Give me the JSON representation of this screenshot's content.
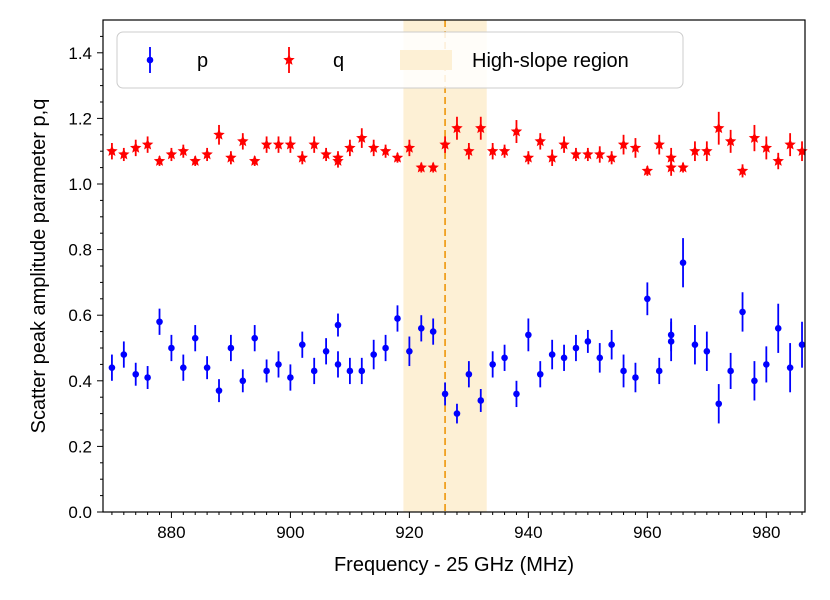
{
  "chart_data": {
    "type": "scatter",
    "xlabel": "Frequency - 25 GHz (MHz)",
    "ylabel": "Scatter peak amplitude parameter p,q",
    "xlim": [
      868.5,
      986.5
    ],
    "ylim": [
      0.0,
      1.5
    ],
    "xticks": [
      880,
      900,
      920,
      940,
      960,
      980
    ],
    "yticks": [
      0.0,
      0.2,
      0.4,
      0.6,
      0.8,
      1.0,
      1.2,
      1.4
    ],
    "legend_position": "top",
    "legend": [
      {
        "label": "p",
        "color": "#0000ff",
        "marker": "dot"
      },
      {
        "label": "q",
        "color": "#ff0000",
        "marker": "star"
      },
      {
        "label": "High-slope region",
        "color": "#fdf0d5",
        "marker": "band"
      }
    ],
    "highlight_region": {
      "label": "High-slope region",
      "x_start": 919,
      "x_end": 933,
      "color": "#fdf0d5"
    },
    "vertical_line": {
      "x": 926,
      "color": "#f0a020",
      "style": "dashed"
    },
    "series": [
      {
        "name": "p",
        "color": "#0000ff",
        "marker": "dot",
        "points": [
          [
            870,
            0.44,
            0.04
          ],
          [
            872,
            0.48,
            0.04
          ],
          [
            874,
            0.42,
            0.035
          ],
          [
            876,
            0.41,
            0.035
          ],
          [
            878,
            0.58,
            0.04
          ],
          [
            880,
            0.5,
            0.04
          ],
          [
            882,
            0.44,
            0.04
          ],
          [
            884,
            0.53,
            0.04
          ],
          [
            886,
            0.44,
            0.035
          ],
          [
            888,
            0.37,
            0.035
          ],
          [
            890,
            0.5,
            0.04
          ],
          [
            892,
            0.4,
            0.035
          ],
          [
            894,
            0.53,
            0.04
          ],
          [
            896,
            0.43,
            0.035
          ],
          [
            898,
            0.45,
            0.04
          ],
          [
            900,
            0.41,
            0.04
          ],
          [
            902,
            0.51,
            0.04
          ],
          [
            904,
            0.43,
            0.04
          ],
          [
            906,
            0.49,
            0.04
          ],
          [
            908,
            0.57,
            0.035
          ],
          [
            908,
            0.45,
            0.04
          ],
          [
            910,
            0.43,
            0.04
          ],
          [
            912,
            0.43,
            0.04
          ],
          [
            914,
            0.48,
            0.045
          ],
          [
            916,
            0.5,
            0.04
          ],
          [
            918,
            0.59,
            0.04
          ],
          [
            920,
            0.49,
            0.045
          ],
          [
            922,
            0.56,
            0.04
          ],
          [
            924,
            0.55,
            0.04
          ],
          [
            926,
            0.36,
            0.035
          ],
          [
            928,
            0.3,
            0.03
          ],
          [
            930,
            0.42,
            0.04
          ],
          [
            932,
            0.34,
            0.035
          ],
          [
            934,
            0.45,
            0.04
          ],
          [
            936,
            0.47,
            0.04
          ],
          [
            938,
            0.36,
            0.04
          ],
          [
            940,
            0.54,
            0.05
          ],
          [
            942,
            0.42,
            0.04
          ],
          [
            944,
            0.48,
            0.045
          ],
          [
            946,
            0.47,
            0.04
          ],
          [
            948,
            0.5,
            0.04
          ],
          [
            950,
            0.52,
            0.035
          ],
          [
            952,
            0.47,
            0.045
          ],
          [
            954,
            0.51,
            0.045
          ],
          [
            956,
            0.43,
            0.05
          ],
          [
            958,
            0.41,
            0.045
          ],
          [
            960,
            0.65,
            0.05
          ],
          [
            962,
            0.43,
            0.04
          ],
          [
            964,
            0.52,
            0.06
          ],
          [
            964,
            0.54,
            0.05
          ],
          [
            966,
            0.76,
            0.075
          ],
          [
            968,
            0.51,
            0.06
          ],
          [
            970,
            0.49,
            0.06
          ],
          [
            972,
            0.33,
            0.06
          ],
          [
            974,
            0.43,
            0.055
          ],
          [
            976,
            0.61,
            0.06
          ],
          [
            978,
            0.4,
            0.06
          ],
          [
            980,
            0.45,
            0.055
          ],
          [
            982,
            0.56,
            0.075
          ],
          [
            984,
            0.44,
            0.075
          ],
          [
            986,
            0.51,
            0.07
          ]
        ]
      },
      {
        "name": "q",
        "color": "#ff0000",
        "marker": "star",
        "points": [
          [
            870,
            1.1,
            0.025
          ],
          [
            872,
            1.09,
            0.02
          ],
          [
            874,
            1.11,
            0.025
          ],
          [
            876,
            1.12,
            0.025
          ],
          [
            878,
            1.07,
            0.015
          ],
          [
            880,
            1.09,
            0.02
          ],
          [
            882,
            1.1,
            0.02
          ],
          [
            884,
            1.07,
            0.015
          ],
          [
            886,
            1.09,
            0.02
          ],
          [
            888,
            1.15,
            0.03
          ],
          [
            890,
            1.08,
            0.02
          ],
          [
            892,
            1.13,
            0.025
          ],
          [
            894,
            1.07,
            0.015
          ],
          [
            896,
            1.12,
            0.025
          ],
          [
            898,
            1.12,
            0.025
          ],
          [
            900,
            1.12,
            0.025
          ],
          [
            902,
            1.08,
            0.02
          ],
          [
            904,
            1.12,
            0.025
          ],
          [
            906,
            1.09,
            0.02
          ],
          [
            908,
            1.08,
            0.02
          ],
          [
            908,
            1.07,
            0.02
          ],
          [
            910,
            1.11,
            0.025
          ],
          [
            912,
            1.14,
            0.03
          ],
          [
            914,
            1.11,
            0.025
          ],
          [
            916,
            1.1,
            0.02
          ],
          [
            918,
            1.08,
            0.015
          ],
          [
            920,
            1.11,
            0.025
          ],
          [
            922,
            1.05,
            0.015
          ],
          [
            924,
            1.05,
            0.015
          ],
          [
            926,
            1.12,
            0.025
          ],
          [
            928,
            1.17,
            0.035
          ],
          [
            930,
            1.1,
            0.025
          ],
          [
            932,
            1.17,
            0.035
          ],
          [
            934,
            1.1,
            0.025
          ],
          [
            936,
            1.1,
            0.02
          ],
          [
            938,
            1.16,
            0.035
          ],
          [
            940,
            1.08,
            0.02
          ],
          [
            942,
            1.13,
            0.025
          ],
          [
            944,
            1.08,
            0.025
          ],
          [
            946,
            1.12,
            0.025
          ],
          [
            948,
            1.09,
            0.02
          ],
          [
            950,
            1.09,
            0.02
          ],
          [
            952,
            1.09,
            0.025
          ],
          [
            954,
            1.08,
            0.02
          ],
          [
            956,
            1.12,
            0.03
          ],
          [
            958,
            1.11,
            0.03
          ],
          [
            960,
            1.04,
            0.015
          ],
          [
            962,
            1.12,
            0.03
          ],
          [
            964,
            1.08,
            0.03
          ],
          [
            964,
            1.05,
            0.025
          ],
          [
            966,
            1.05,
            0.015
          ],
          [
            968,
            1.1,
            0.03
          ],
          [
            970,
            1.1,
            0.03
          ],
          [
            972,
            1.17,
            0.05
          ],
          [
            974,
            1.13,
            0.035
          ],
          [
            976,
            1.04,
            0.02
          ],
          [
            978,
            1.14,
            0.04
          ],
          [
            980,
            1.11,
            0.035
          ],
          [
            982,
            1.07,
            0.025
          ],
          [
            984,
            1.12,
            0.035
          ],
          [
            986,
            1.1,
            0.03
          ]
        ]
      }
    ]
  }
}
